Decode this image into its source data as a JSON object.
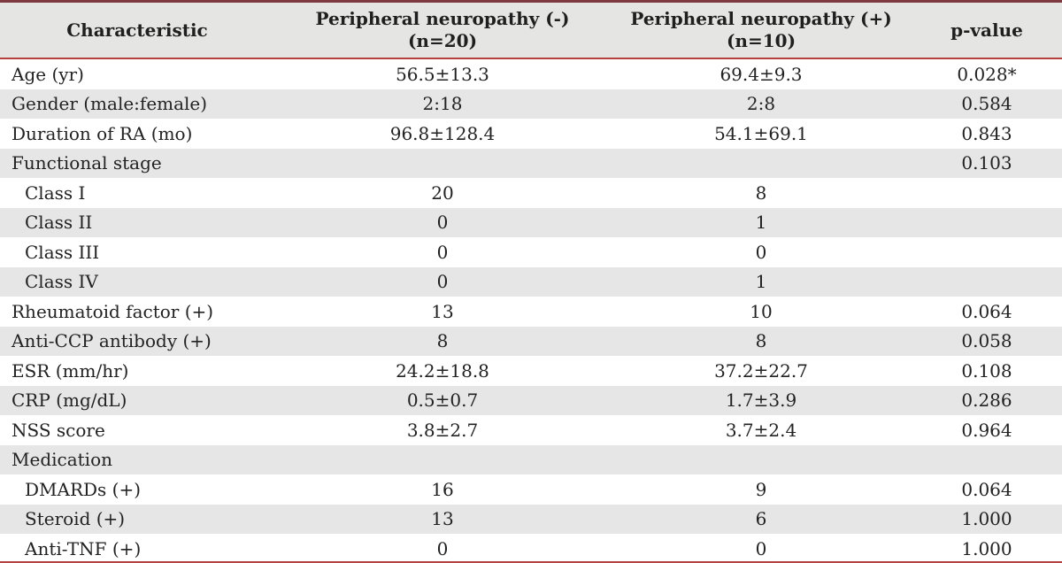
{
  "table": {
    "header": {
      "characteristic": "Characteristic",
      "group_negative_line1": "Peripheral neuropathy (-)",
      "group_negative_line2": "(n=20)",
      "group_positive_line1": "Peripheral neuropathy (+)",
      "group_positive_line2": "(n=10)",
      "p_value": "p-value"
    },
    "rows": [
      {
        "label": "Age (yr)",
        "indent": false,
        "neg": "56.5±13.3",
        "pos": "69.4±9.3",
        "p": "0.028*"
      },
      {
        "label": "Gender (male:female)",
        "indent": false,
        "neg": "2:18",
        "pos": "2:8",
        "p": "0.584"
      },
      {
        "label": "Duration of RA (mo)",
        "indent": false,
        "neg": "96.8±128.4",
        "pos": "54.1±69.1",
        "p": "0.843"
      },
      {
        "label": "Functional stage",
        "indent": false,
        "neg": "",
        "pos": "",
        "p": "0.103"
      },
      {
        "label": "Class I",
        "indent": true,
        "neg": "20",
        "pos": "8",
        "p": ""
      },
      {
        "label": "Class II",
        "indent": true,
        "neg": "0",
        "pos": "1",
        "p": ""
      },
      {
        "label": "Class III",
        "indent": true,
        "neg": "0",
        "pos": "0",
        "p": ""
      },
      {
        "label": "Class IV",
        "indent": true,
        "neg": "0",
        "pos": "1",
        "p": ""
      },
      {
        "label": "Rheumatoid factor (+)",
        "indent": false,
        "neg": "13",
        "pos": "10",
        "p": "0.064"
      },
      {
        "label": "Anti-CCP antibody (+)",
        "indent": false,
        "neg": "8",
        "pos": "8",
        "p": "0.058"
      },
      {
        "label": "ESR (mm/hr)",
        "indent": false,
        "neg": "24.2±18.8",
        "pos": "37.2±22.7",
        "p": "0.108"
      },
      {
        "label": "CRP (mg/dL)",
        "indent": false,
        "neg": "0.5±0.7",
        "pos": "1.7±3.9",
        "p": "0.286"
      },
      {
        "label": "NSS score",
        "indent": false,
        "neg": "3.8±2.7",
        "pos": "3.7±2.4",
        "p": "0.964"
      },
      {
        "label": "Medication",
        "indent": false,
        "neg": "",
        "pos": "",
        "p": ""
      },
      {
        "label": "DMARDs (+)",
        "indent": true,
        "neg": "16",
        "pos": "9",
        "p": "0.064"
      },
      {
        "label": "Steroid (+)",
        "indent": true,
        "neg": "13",
        "pos": "6",
        "p": "1.000"
      },
      {
        "label": "Anti-TNF (+)",
        "indent": true,
        "neg": "0",
        "pos": "0",
        "p": "1.000"
      }
    ]
  },
  "colors": {
    "rule_top": "#7e3a40",
    "rule_thin": "#b5423f",
    "row_shade": "#e6e6e6",
    "header_shade": "#e5e5e3",
    "text": "#222222"
  }
}
